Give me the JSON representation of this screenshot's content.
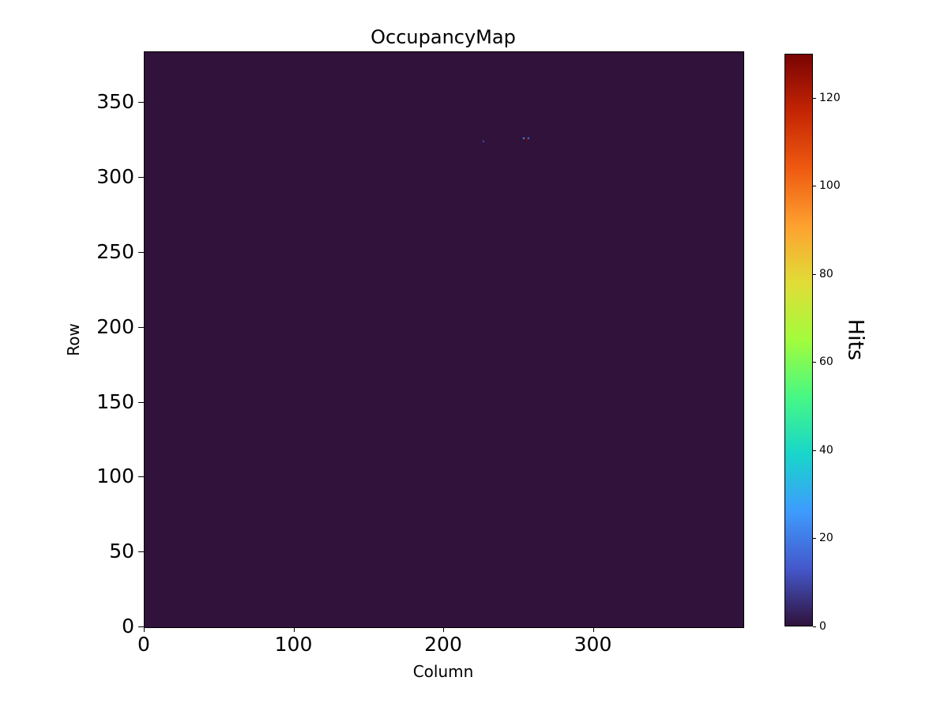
{
  "chart_data": {
    "type": "heatmap",
    "title": "OccupancyMap",
    "xlabel": "Column",
    "ylabel": "Row",
    "xlim": [
      0,
      400
    ],
    "ylim": [
      0,
      384
    ],
    "xticks": [
      0,
      100,
      200,
      300
    ],
    "yticks": [
      0,
      50,
      100,
      150,
      200,
      250,
      300,
      350
    ],
    "grid": false,
    "legend": "none",
    "colorbar": {
      "label": "Hits",
      "ticks": [
        0,
        20,
        40,
        60,
        80,
        100,
        120
      ],
      "range": [
        0,
        130
      ]
    },
    "colormap": {
      "name": "turbo",
      "stops": [
        {
          "pos": 0.0,
          "color": "#30123b"
        },
        {
          "pos": 0.1,
          "color": "#4458cb"
        },
        {
          "pos": 0.2,
          "color": "#3e9bfe"
        },
        {
          "pos": 0.3,
          "color": "#18d6cb"
        },
        {
          "pos": 0.4,
          "color": "#46f884"
        },
        {
          "pos": 0.5,
          "color": "#a2fc3c"
        },
        {
          "pos": 0.6,
          "color": "#e1dd37"
        },
        {
          "pos": 0.7,
          "color": "#fea130"
        },
        {
          "pos": 0.8,
          "color": "#ef5a11"
        },
        {
          "pos": 0.9,
          "color": "#c42503"
        },
        {
          "pos": 1.0,
          "color": "#7a0403"
        }
      ]
    },
    "points": [
      {
        "col": 226,
        "row": 325,
        "hits": 12
      },
      {
        "col": 253,
        "row": 327,
        "hits": 30
      },
      {
        "col": 255,
        "row": 326,
        "hits": 128
      },
      {
        "col": 256,
        "row": 327,
        "hits": 20
      }
    ]
  }
}
